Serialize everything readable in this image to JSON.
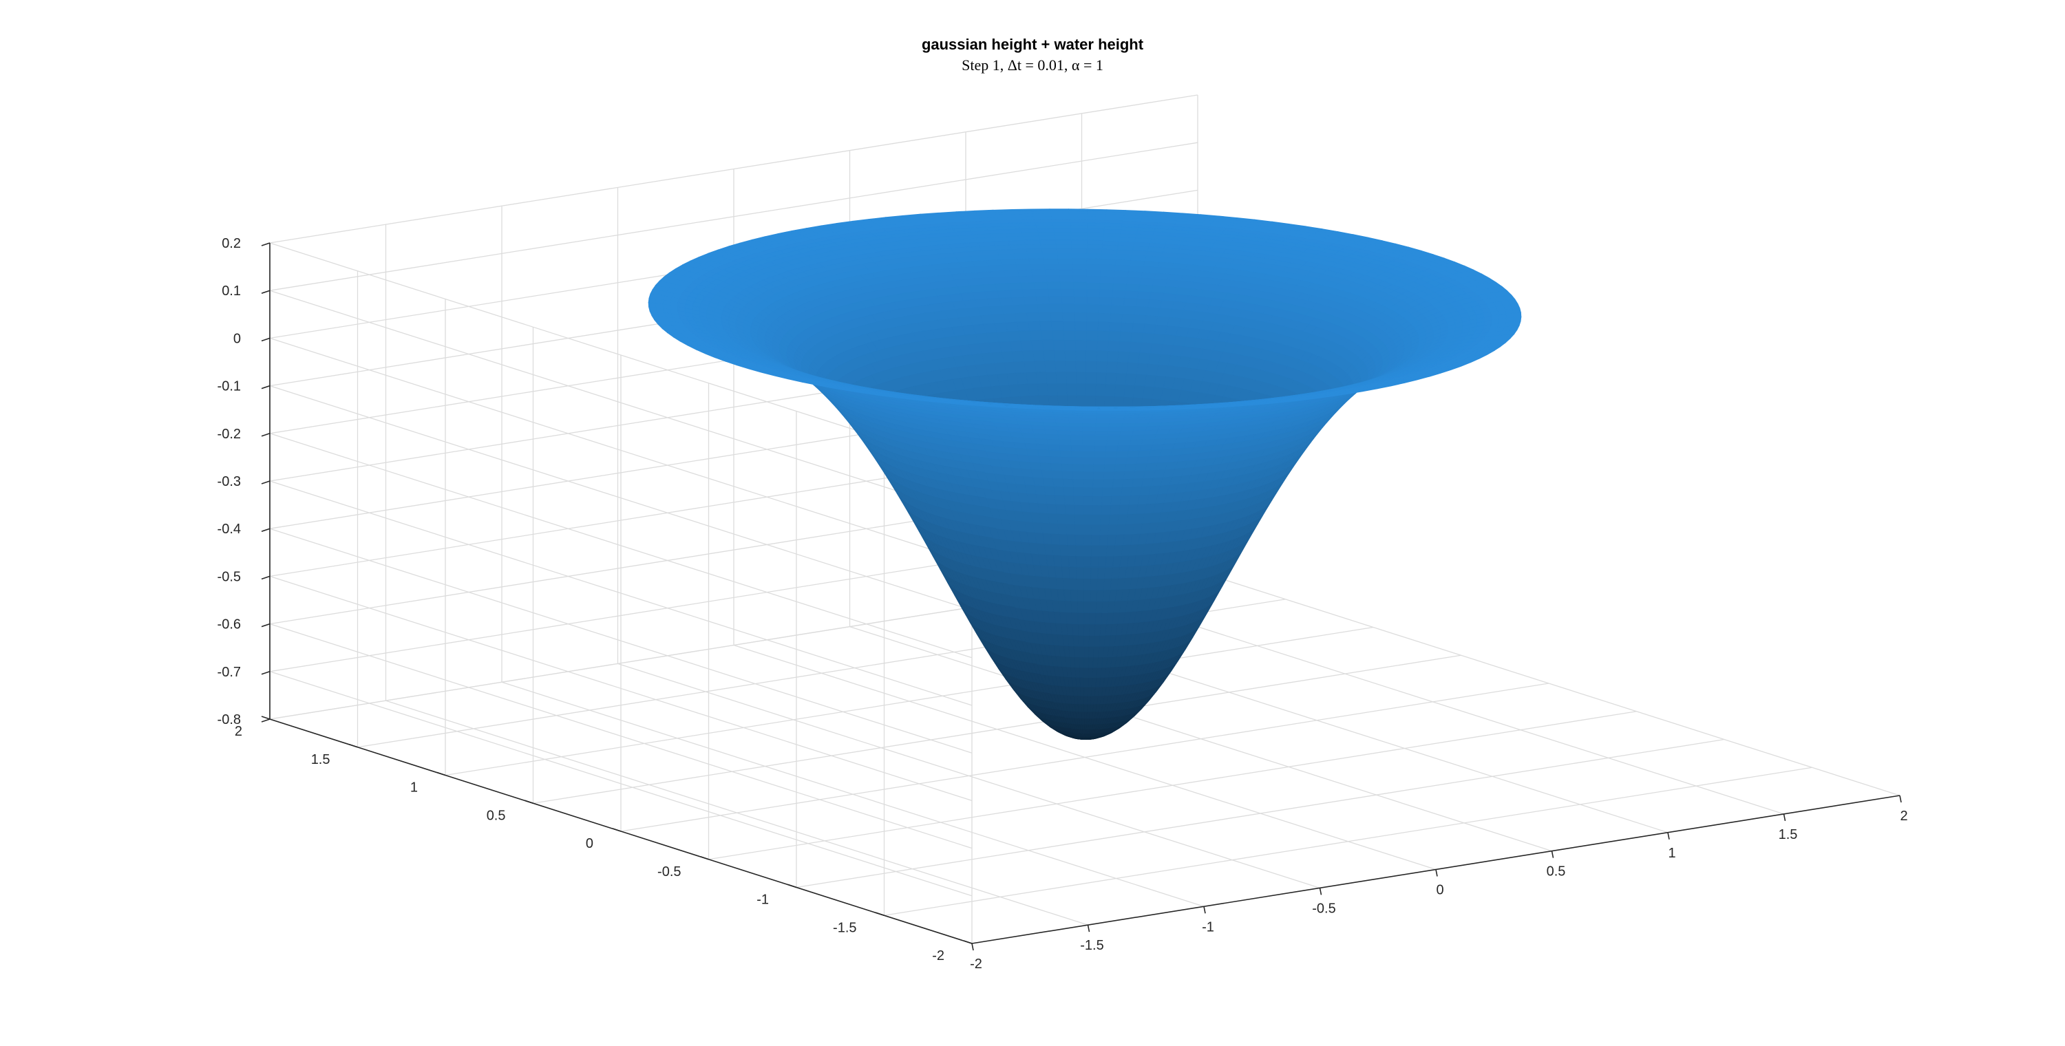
{
  "chart_data": {
    "type": "surface",
    "title": "gaussian height + water height",
    "subtitle": "Step 1, Δt = 0.01, α = 1",
    "xlabel": "",
    "ylabel": "",
    "zlabel": "",
    "xlim": [
      -2,
      2
    ],
    "ylim": [
      -2,
      2
    ],
    "zlim": [
      -0.8,
      0.2
    ],
    "x_ticks": [
      "-2",
      "-1.5",
      "-1",
      "-0.5",
      "0",
      "0.5",
      "1",
      "1.5",
      "2"
    ],
    "y_ticks": [
      "-2",
      "-1.5",
      "-1",
      "-0.5",
      "0",
      "0.5",
      "1",
      "1.5",
      "2"
    ],
    "z_ticks": [
      "-0.8",
      "-0.7",
      "-0.6",
      "-0.5",
      "-0.4",
      "-0.3",
      "-0.2",
      "-0.1",
      "0",
      "0.1",
      "0.2"
    ],
    "surface": {
      "formula": "z = 0.15 - 0.91*exp(-(x^2+y^2)/0.5), clipped to disk of radius 1.5",
      "min_z": -0.76,
      "rim_z": 0.15,
      "domain_radius": 1.5
    },
    "grid": true,
    "colors": {
      "surface_light": "#2a8ddd",
      "surface_dark": "#0b2236",
      "axis": "#262626",
      "grid": "#dcdcdc"
    }
  }
}
